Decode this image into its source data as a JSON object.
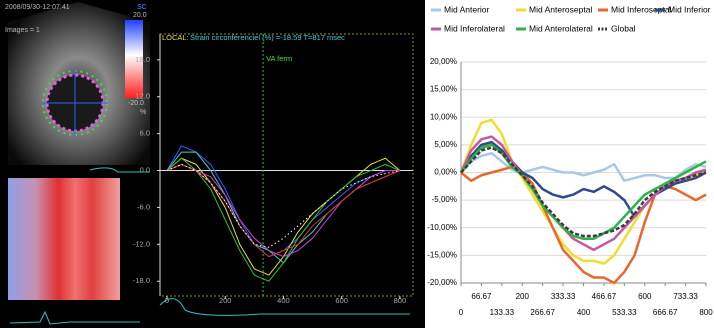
{
  "echo_panel": {
    "timestamp": "2008/09/30-12:07:41",
    "images": "Images = 1",
    "scale_label": "SC",
    "scale_max": "20.0",
    "scale_min": "-20.0",
    "unit": "%"
  },
  "chart_data": [
    {
      "type": "line",
      "title": "LOCAL:",
      "subtitle": "Strain circonférenciel (%) =-18.59  T=817 msec",
      "annotations": [
        {
          "text": "VA ferm",
          "x": 330
        }
      ],
      "x": [
        0,
        50,
        100,
        150,
        200,
        250,
        300,
        350,
        400,
        450,
        500,
        550,
        600,
        650,
        700,
        750,
        800
      ],
      "xlim": [
        -24,
        845
      ],
      "xticks": [
        0,
        200,
        400,
        600,
        800
      ],
      "ylim": [
        -20.4,
        22.2
      ],
      "yticks": [
        {
          "value": 18,
          "label": "18.0"
        },
        {
          "value": 12,
          "label": "12.0"
        },
        {
          "value": 6,
          "label": "6.0"
        },
        {
          "value": 0,
          "label": "0.0"
        },
        {
          "value": -6,
          "label": "-6.0"
        },
        {
          "value": -12,
          "label": "-12.0"
        },
        {
          "value": -18,
          "label": "-18.0"
        }
      ],
      "series": [
        {
          "color": "#3a5cff",
          "values": [
            0,
            4,
            3,
            1,
            -3,
            -8,
            -12,
            -14,
            -13,
            -11,
            -8,
            -6,
            -4,
            -2,
            -1,
            0,
            0
          ]
        },
        {
          "color": "#40d0d0",
          "values": [
            0,
            3,
            3,
            0,
            -4,
            -9,
            -12,
            -13,
            -15,
            -12,
            -10,
            -7,
            -5,
            -3,
            -2,
            -1,
            0
          ]
        },
        {
          "color": "#e0e040",
          "values": [
            0,
            2,
            1,
            -2,
            -6,
            -12,
            -16,
            -17,
            -14,
            -10,
            -7,
            -5,
            -3,
            -1,
            1,
            2,
            0
          ]
        },
        {
          "color": "#30c030",
          "values": [
            0,
            2,
            0,
            -3,
            -8,
            -13,
            -17,
            -18,
            -15,
            -11,
            -8,
            -5,
            -3,
            -1,
            0,
            1,
            0
          ]
        },
        {
          "color": "#d040d0",
          "values": [
            0,
            1,
            0,
            -1,
            -4,
            -8,
            -11,
            -13,
            -14,
            -13,
            -11,
            -8,
            -5,
            -3,
            -1,
            0,
            0
          ]
        },
        {
          "color": "#e03030",
          "values": [
            0,
            1,
            0,
            -2,
            -5,
            -9,
            -12,
            -14,
            -13,
            -12,
            -9,
            -7,
            -5,
            -3,
            -2,
            -1,
            0
          ]
        },
        {
          "color": "#ffffff",
          "dash": true,
          "values": [
            0,
            1,
            0,
            -2,
            -5,
            -9,
            -12,
            -12.5,
            -11,
            -9,
            -7,
            -5,
            -3,
            -2,
            -1,
            -0.5,
            0
          ]
        }
      ]
    },
    {
      "type": "line",
      "legend": "top",
      "grid": true,
      "x": [
        0,
        33.33,
        66.67,
        100,
        133.33,
        166.67,
        200,
        233.33,
        266.67,
        300,
        333.33,
        366.67,
        400,
        433.33,
        466.67,
        500,
        533.33,
        566.67,
        600,
        633.33,
        666.67,
        700,
        733.33,
        766.67,
        800
      ],
      "xlim": [
        0,
        800
      ],
      "xticks": [
        0,
        66.67,
        133.33,
        200,
        266.67,
        333.33,
        400,
        466.67,
        533.33,
        600,
        666.67,
        733.33,
        800
      ],
      "ylim": [
        -20,
        20
      ],
      "yticks": [
        {
          "value": 20,
          "label": "20,00%"
        },
        {
          "value": 15,
          "label": "15,00%"
        },
        {
          "value": 10,
          "label": "10,00%"
        },
        {
          "value": 5,
          "label": "5,00%"
        },
        {
          "value": 0,
          "label": "0,00%"
        },
        {
          "value": -5,
          "label": "-5,00%"
        },
        {
          "value": -10,
          "label": "-10,00%"
        },
        {
          "value": -15,
          "label": "-15,00%"
        },
        {
          "value": -20,
          "label": "-20,00%"
        }
      ],
      "series": [
        {
          "name": "Mid Anterior",
          "color": "#a9c8e8",
          "values": [
            0,
            2,
            3,
            3.5,
            2,
            0.5,
            0,
            0.5,
            1,
            0.5,
            0,
            0,
            -0.5,
            0,
            0.5,
            1.5,
            -1.5,
            -1,
            -0.5,
            -0.5,
            -1,
            -1,
            0.5,
            1.5,
            1
          ]
        },
        {
          "name": "Mid Anteroseptal",
          "color": "#f2dc2e",
          "values": [
            0,
            5,
            9,
            9.5,
            7,
            2,
            -1,
            -4,
            -7,
            -10,
            -13,
            -15,
            -16,
            -16,
            -16.5,
            -15,
            -12,
            -9,
            -6,
            -4,
            -3,
            -1.5,
            -1,
            -0.5,
            0
          ]
        },
        {
          "name": "Mid Inferoseptal",
          "color": "#e8672a",
          "values": [
            0,
            -1.5,
            -0.5,
            0,
            0.5,
            1,
            0,
            -2,
            -6,
            -10,
            -14,
            -16,
            -18,
            -19,
            -19,
            -20,
            -18,
            -15,
            -9,
            -4,
            -2.5,
            -3,
            -4,
            -5,
            -4
          ]
        },
        {
          "name": "Mid Inferior",
          "color": "#2e4a8a",
          "values": [
            0,
            3,
            5,
            5.5,
            4,
            2,
            0,
            -1,
            -3,
            -4,
            -4.5,
            -4,
            -3,
            -3.5,
            -2.5,
            -3.5,
            -5,
            -8,
            -6,
            -4,
            -3,
            -2,
            -1.5,
            -1,
            0
          ]
        },
        {
          "name": "Mid Inferolateral",
          "color": "#c4589e",
          "values": [
            0,
            4,
            6,
            6.5,
            5,
            2,
            -0.5,
            -3,
            -6,
            -8,
            -10,
            -12,
            -13,
            -14,
            -13,
            -12,
            -10,
            -8,
            -6,
            -4,
            -2.5,
            -1.5,
            -1,
            0,
            0.5
          ]
        },
        {
          "name": "Mid Anterolateral",
          "color": "#2db34a",
          "values": [
            0,
            2.5,
            4.5,
            5,
            3.5,
            1,
            -0.5,
            -3,
            -6,
            -8,
            -10,
            -11.5,
            -12,
            -12,
            -11,
            -10,
            -8,
            -6,
            -4,
            -3,
            -2,
            -1,
            0,
            1,
            2
          ]
        },
        {
          "name": "Global",
          "color": "#3c3c3c",
          "dash": true,
          "values": [
            0,
            2,
            4,
            4.5,
            3.5,
            1.5,
            -0.5,
            -2.5,
            -5.5,
            -7.5,
            -9.5,
            -11,
            -11.5,
            -11.5,
            -11,
            -10.5,
            -9.5,
            -7.5,
            -5,
            -3.5,
            -2.5,
            -1.5,
            -1,
            -0.5,
            0
          ]
        }
      ]
    }
  ]
}
